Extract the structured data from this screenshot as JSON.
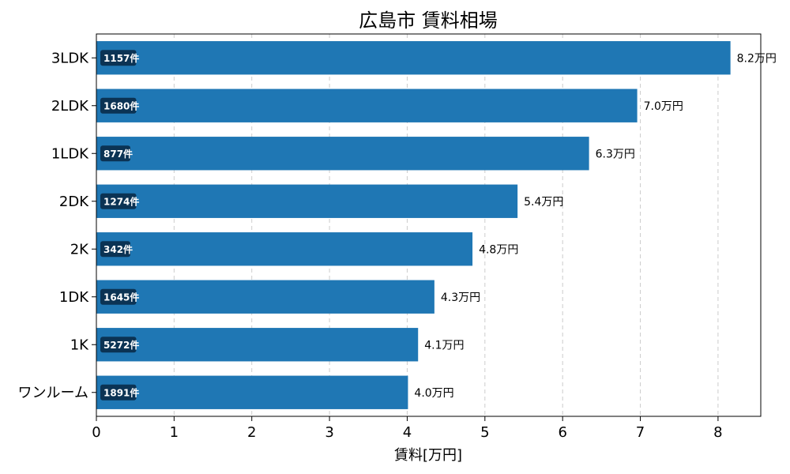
{
  "chart_data": {
    "type": "bar",
    "orientation": "horizontal",
    "title": "広島市 賃料相場",
    "xlabel": "賃料[万円]",
    "ylabel": "",
    "xlim": [
      0,
      8.55
    ],
    "xticks": [
      "0",
      "1",
      "2",
      "3",
      "4",
      "5",
      "6",
      "7",
      "8"
    ],
    "grid": "x-dashed",
    "bar_color": "#1f77b4",
    "count_badge_color": "#0b3354",
    "categories": [
      "3LDK",
      "2LDK",
      "1LDK",
      "2DK",
      "2K",
      "1DK",
      "1K",
      "ワンルーム"
    ],
    "values": [
      8.16,
      6.96,
      6.34,
      5.42,
      4.84,
      4.35,
      4.14,
      4.01
    ],
    "value_labels": [
      "8.2万円",
      "7.0万円",
      "6.3万円",
      "5.4万円",
      "4.8万円",
      "4.3万円",
      "4.1万円",
      "4.0万円"
    ],
    "count_labels": [
      "1157件",
      "1680件",
      "877件",
      "1274件",
      "342件",
      "1645件",
      "5272件",
      "1891件"
    ]
  }
}
